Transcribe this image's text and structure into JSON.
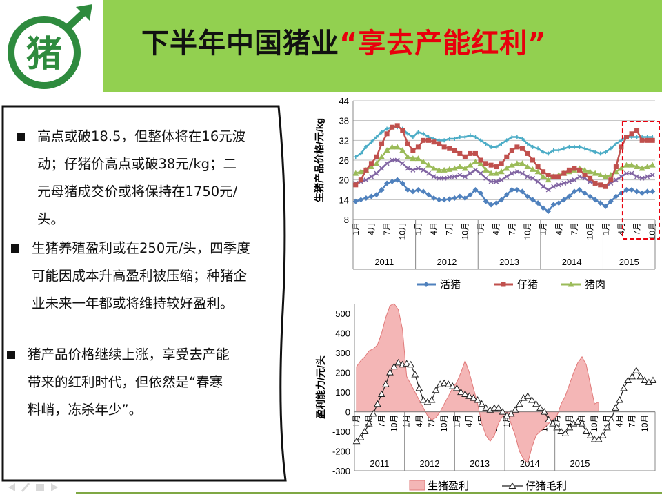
{
  "slide": {
    "logo_char": "猪",
    "title_main": "下半年中国猪业",
    "title_highlight": "“享去产能红利”"
  },
  "bullets": [
    {
      "lines": [
        "高点或破18.5，但整体将在16元波",
        "动；仔猪价高点或破38元/kg；二",
        "元母猪成交价或将保持在1750元/",
        "头。"
      ]
    },
    {
      "lines": [
        "生猪养殖盈利或在250元/头，四季度",
        "可能因成本升高盈利被压缩；种猪企",
        "业未来一年都或将维持较好盈利。"
      ]
    },
    {
      "lines": [
        "猪产品价格继续上涨，享受去产能",
        "带来的红利时代，但依然是“春寒",
        "料峭，冻杀年少”。"
      ]
    }
  ],
  "colors": {
    "title_band": "#92d050",
    "title_highlight": "#e8000d",
    "live_hog": "#4f81bd",
    "piglet": "#c0504d",
    "pork": "#9bbb59",
    "sow": "#8064a2",
    "series5": "#4bacc6",
    "profit_fill": "#f4b6b6",
    "profit_stroke": "#e07a7a"
  },
  "chart_data": [
    {
      "type": "line",
      "ylabel": "生猪产品价格/元/kg",
      "ylim": [
        8,
        44
      ],
      "yticks": [
        8,
        14,
        20,
        26,
        32,
        38,
        44
      ],
      "month_labels": [
        "1月",
        "4月",
        "7月",
        "10月"
      ],
      "years": [
        "2011",
        "2012",
        "2013",
        "2014",
        "2015"
      ],
      "legend": [
        "活猪",
        "仔猪",
        "猪肉"
      ],
      "legend_position": "bottom",
      "highlight_box": "2015年7月-12月",
      "series": [
        {
          "name": "活猪",
          "color": "#4f81bd",
          "values": [
            13.5,
            14,
            14.5,
            15,
            15.5,
            17,
            19,
            19.5,
            20,
            19,
            17,
            16.5,
            17,
            16.5,
            15.5,
            14.5,
            14,
            14,
            14.2,
            14.5,
            15,
            14.5,
            15.5,
            17,
            16,
            13.5,
            12.5,
            13,
            14,
            15.5,
            17,
            17,
            16.5,
            15,
            14,
            13,
            11.5,
            10.5,
            12.5,
            13,
            14,
            15,
            16.5,
            17,
            16,
            15,
            14,
            13,
            12,
            13.5,
            15,
            16,
            17,
            17,
            16.5,
            16,
            16.5,
            16.5
          ]
        },
        {
          "name": "仔猪",
          "color": "#c0504d",
          "values": [
            18.5,
            20,
            23,
            25,
            27,
            31,
            34,
            36,
            36.5,
            35,
            31,
            29,
            30,
            32,
            32,
            31.5,
            31,
            30,
            29.5,
            29,
            28,
            27,
            28,
            28,
            26,
            25,
            24.5,
            24,
            25,
            27,
            29,
            30,
            29.5,
            28,
            26,
            24,
            22.5,
            21.5,
            21,
            21,
            22,
            23,
            23.5,
            23,
            21.5,
            20.5,
            19,
            18.5,
            18,
            20,
            24,
            30,
            33,
            34,
            35,
            32,
            32,
            32
          ]
        },
        {
          "name": "猪肉",
          "color": "#9bbb59",
          "values": [
            22,
            22.5,
            23,
            24,
            25,
            27,
            29,
            30,
            30,
            29,
            27,
            26.5,
            26.5,
            25.5,
            24.5,
            23.5,
            23,
            23,
            23.2,
            23.5,
            24,
            23.5,
            24.5,
            25.5,
            25,
            23,
            22,
            22,
            22.5,
            23.5,
            24.5,
            25,
            25,
            24,
            23.2,
            22.5,
            21,
            20,
            21,
            21.5,
            22,
            22.5,
            23,
            23.5,
            23,
            22.5,
            22,
            21.5,
            21,
            21.5,
            22.5,
            23.5,
            24.5,
            24.5,
            24,
            23.5,
            24,
            24.5
          ]
        },
        {
          "name": "",
          "color": "#8064a2",
          "values": [
            19,
            19.5,
            20,
            21,
            22,
            23.5,
            25,
            26,
            26,
            25,
            23.5,
            23,
            23.5,
            23,
            22,
            21,
            20.5,
            20.5,
            20.8,
            21,
            21.5,
            21,
            22,
            23,
            22,
            20.5,
            19.5,
            19.5,
            20,
            21,
            22,
            22.5,
            22,
            21,
            20.5,
            19.5,
            18,
            17,
            18,
            18.5,
            19,
            19.5,
            20,
            21,
            20.5,
            19.5,
            19,
            18.5,
            18,
            19,
            20,
            21,
            22,
            22,
            21,
            20.5,
            21,
            21.5
          ]
        },
        {
          "name": "",
          "color": "#4bacc6",
          "values": [
            27,
            28,
            30,
            31.5,
            33,
            34.5,
            35.5,
            36,
            36,
            35.5,
            34,
            33,
            34.5,
            34,
            33,
            32.5,
            32,
            32,
            32.5,
            32.5,
            33,
            33,
            33.5,
            33,
            32,
            31,
            30,
            30,
            31,
            32,
            33,
            33,
            32.5,
            31,
            30,
            29.5,
            28.5,
            28,
            29,
            29,
            29.5,
            30,
            30,
            30,
            29.5,
            29,
            28.5,
            28,
            28.5,
            29.5,
            31,
            32,
            33,
            33,
            33,
            33,
            33,
            33
          ]
        }
      ]
    },
    {
      "type": "area",
      "ylabel": "盈利能力/元/头",
      "ylim": [
        -300,
        550
      ],
      "yticks": [
        -300,
        -200,
        -100,
        0,
        100,
        200,
        300,
        400,
        500
      ],
      "month_labels": [
        "1月",
        "4月",
        "7月",
        "10月"
      ],
      "years": [
        "2011",
        "2012",
        "2013",
        "2014",
        "2015"
      ],
      "legend": [
        "生猪盈利",
        "仔猪毛利"
      ],
      "legend_position": "bottom",
      "series": [
        {
          "name": "生猪盈利",
          "type": "area",
          "color": "#f4b6b6",
          "values": [
            230,
            260,
            280,
            310,
            320,
            340,
            400,
            480,
            540,
            550,
            520,
            420,
            180,
            140,
            100,
            60,
            20,
            -20,
            -40,
            -30,
            0,
            40,
            80,
            120,
            150,
            200,
            260,
            200,
            120,
            40,
            -60,
            -120,
            -150,
            -120,
            -60,
            -20,
            0,
            -60,
            -120,
            -200,
            -240,
            -260,
            -180,
            -120,
            -100,
            -80,
            -60,
            -40,
            -20,
            40,
            80,
            140,
            200,
            250,
            280,
            240,
            140,
            40,
            50
          ]
        },
        {
          "name": "仔猪毛利",
          "type": "line",
          "color": "#222222",
          "values": [
            -150,
            -130,
            -100,
            -60,
            -10,
            40,
            90,
            140,
            200,
            230,
            250,
            240,
            245,
            240,
            190,
            120,
            60,
            50,
            60,
            110,
            140,
            145,
            140,
            130,
            120,
            100,
            90,
            80,
            70,
            60,
            40,
            20,
            10,
            20,
            20,
            0,
            -20,
            -10,
            10,
            40,
            70,
            80,
            60,
            40,
            20,
            0,
            -40,
            -60,
            -80,
            -100,
            -110,
            -80,
            -60,
            -50,
            -60,
            -100,
            -120,
            -140,
            -140,
            -120,
            -80,
            -40,
            20,
            60,
            120,
            160,
            180,
            210,
            180,
            160,
            150,
            160
          ]
        }
      ]
    }
  ]
}
